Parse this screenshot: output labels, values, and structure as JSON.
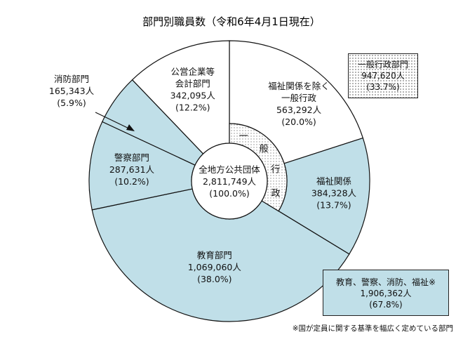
{
  "chart_data": {
    "type": "pie",
    "title": "部門別職員数（令和6年4月1日現在）",
    "center": {
      "name": "全地方公共団体",
      "value": "2,811,749人",
      "percent": "(100.0%)"
    },
    "slices": [
      {
        "name": "福祉関係を除く一般行政",
        "lines": [
          "福祉関係を除く",
          "一般行政",
          "563,292人",
          "(20.0%)"
        ],
        "value": 563292,
        "percent": 20.0,
        "group": "general",
        "color": "#ffffff"
      },
      {
        "name": "福祉関係",
        "lines": [
          "福祉関係",
          "384,328人",
          "(13.7%)"
        ],
        "value": 384328,
        "percent": 13.7,
        "group": "general",
        "color": "#c0dfe8"
      },
      {
        "name": "教育部門",
        "lines": [
          "教育部門",
          "1,069,060人",
          "(38.0%)"
        ],
        "value": 1069060,
        "percent": 38.0,
        "group": "other",
        "color": "#c0dfe8"
      },
      {
        "name": "警察部門",
        "lines": [
          "警察部門",
          "287,631人",
          "(10.2%)"
        ],
        "value": 287631,
        "percent": 10.2,
        "group": "other",
        "color": "#c0dfe8"
      },
      {
        "name": "消防部門",
        "lines": [
          "消防部門",
          "165,343人",
          "(5.9%)"
        ],
        "value": 165343,
        "percent": 5.9,
        "group": "other",
        "color": "#c0dfe8"
      },
      {
        "name": "公営企業等会計部門",
        "lines": [
          "公営企業等",
          "会計部門",
          "342,095人",
          "(12.2%)"
        ],
        "value": 342095,
        "percent": 12.2,
        "group": "other",
        "color": "#ffffff"
      }
    ],
    "inner_ring": {
      "chars": [
        "一",
        "般",
        "行",
        "政"
      ],
      "pattern": "dotted"
    },
    "general_admin_box": {
      "lines": [
        "一般行政部門",
        "947,620人",
        "(33.7%)"
      ]
    },
    "summary_box": {
      "lines": [
        "教育、警察、消防、福祉※",
        "1,906,362人",
        "(67.8%)"
      ]
    },
    "footnote": "※国が定員に関する基準を幅広く定めている部門"
  }
}
